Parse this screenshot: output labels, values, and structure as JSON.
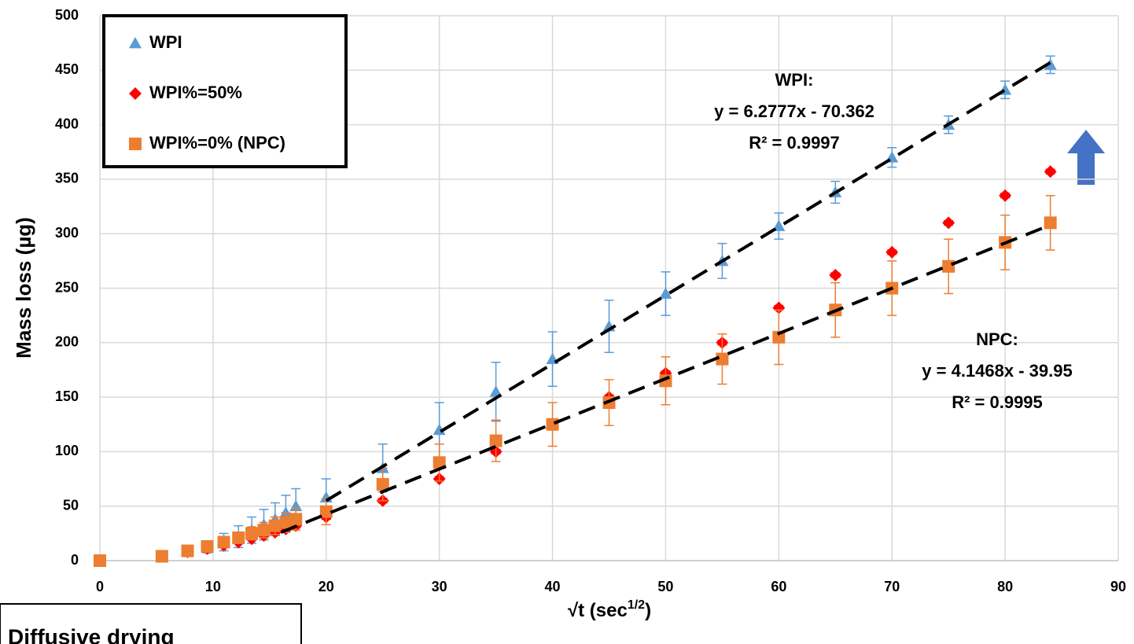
{
  "chart_data": {
    "type": "scatter",
    "ylabel": "Mass loss (µg)",
    "xlabel": "√t (sec",
    "xlabel_sup": "1/2",
    "xlabel_end": ")",
    "xlim": [
      0,
      90
    ],
    "xticks": [
      0,
      10,
      20,
      30,
      40,
      50,
      60,
      70,
      80,
      90
    ],
    "ylim": [
      0,
      500
    ],
    "yticks": [
      0,
      50,
      100,
      150,
      200,
      250,
      300,
      350,
      400,
      450,
      500
    ],
    "grid": true,
    "legend_position": "upper left",
    "x": [
      0,
      5.48,
      7.75,
      9.49,
      10.95,
      12.25,
      13.42,
      14.49,
      15.49,
      16.43,
      17.32,
      20,
      25,
      30,
      35,
      40,
      45,
      50,
      55,
      60,
      65,
      70,
      75,
      80,
      84
    ],
    "series": [
      {
        "name": "WPI",
        "color": "#5b9bd5",
        "marker": "triangle",
        "values": [
          0,
          4,
          9,
          12,
          17,
          22,
          28,
          33,
          38,
          44,
          50,
          58,
          85,
          120,
          155,
          185,
          215,
          245,
          275,
          307,
          338,
          370,
          400,
          432,
          455
        ],
        "errors": [
          0,
          1,
          3,
          5,
          8,
          10,
          12,
          14,
          15,
          16,
          16,
          17,
          22,
          25,
          27,
          25,
          24,
          20,
          16,
          12,
          10,
          9,
          8,
          8,
          8
        ]
      },
      {
        "name": "WPI%=50%",
        "color": "#ff0000",
        "marker": "diamond",
        "values": [
          0,
          4,
          8,
          11,
          14,
          17,
          20,
          23,
          26,
          29,
          32,
          40,
          55,
          75,
          100,
          125,
          150,
          172,
          200,
          232,
          262,
          283,
          310,
          335,
          357
        ],
        "errors": [
          0,
          1,
          1,
          1,
          1,
          1,
          1,
          2,
          2,
          2,
          2,
          2,
          2,
          2,
          2,
          2,
          2,
          2,
          2,
          2,
          2,
          2,
          2,
          2,
          2
        ]
      },
      {
        "name": "WPI%=0% (NPC)",
        "color": "#ed7d31",
        "marker": "square",
        "values": [
          0,
          4,
          9,
          13,
          17,
          21,
          25,
          28,
          32,
          35,
          38,
          45,
          70,
          90,
          110,
          125,
          145,
          165,
          185,
          205,
          230,
          250,
          270,
          292,
          310
        ],
        "errors": [
          0,
          1,
          2,
          3,
          4,
          5,
          6,
          7,
          8,
          9,
          10,
          12,
          15,
          17,
          19,
          20,
          21,
          22,
          23,
          25,
          25,
          25,
          25,
          25,
          25
        ]
      }
    ],
    "trendlines": [
      {
        "color": "#000000",
        "x": [
          20,
          84
        ],
        "values": [
          55,
          457
        ]
      },
      {
        "color": "#000000",
        "x": [
          16,
          84
        ],
        "values": [
          26,
          308
        ]
      }
    ],
    "annotations": [
      [
        "WPI:",
        "y = 6.2777x - 70.362",
        "R² = 0.9997"
      ],
      [
        "NPC:",
        "y = 4.1468x - 39.95",
        "R² = 0.9995"
      ]
    ],
    "note": "Diffusive drying"
  }
}
